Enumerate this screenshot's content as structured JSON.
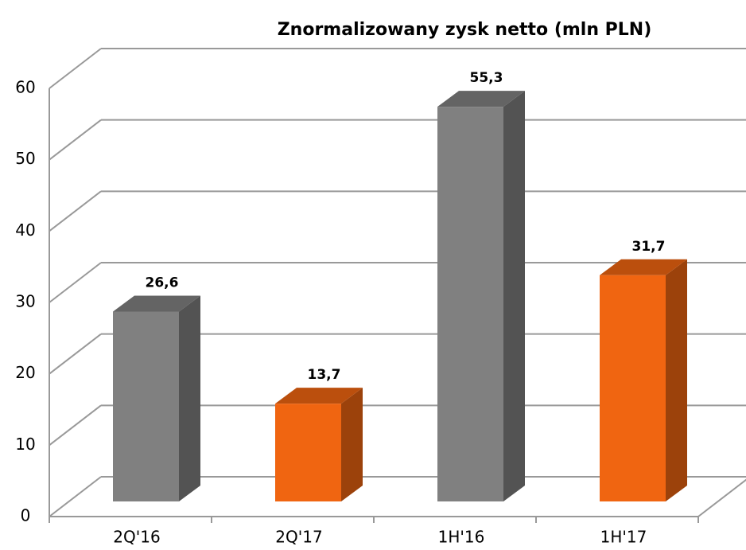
{
  "chart_data": {
    "type": "bar3d",
    "title": "Znormalizowany zysk netto (mln PLN)",
    "categories": [
      "2Q'16",
      "2Q'17",
      "1H'16",
      "1H'17"
    ],
    "values": [
      26.6,
      13.7,
      55.3,
      31.7
    ],
    "value_labels": [
      "26,6",
      "13,7",
      "55,3",
      "31,7"
    ],
    "colors": [
      "#808080",
      "#f06511",
      "#808080",
      "#f06511"
    ],
    "ylim": [
      0,
      60
    ],
    "yticks": [
      0,
      10,
      20,
      30,
      40,
      50,
      60
    ],
    "grid": true
  }
}
